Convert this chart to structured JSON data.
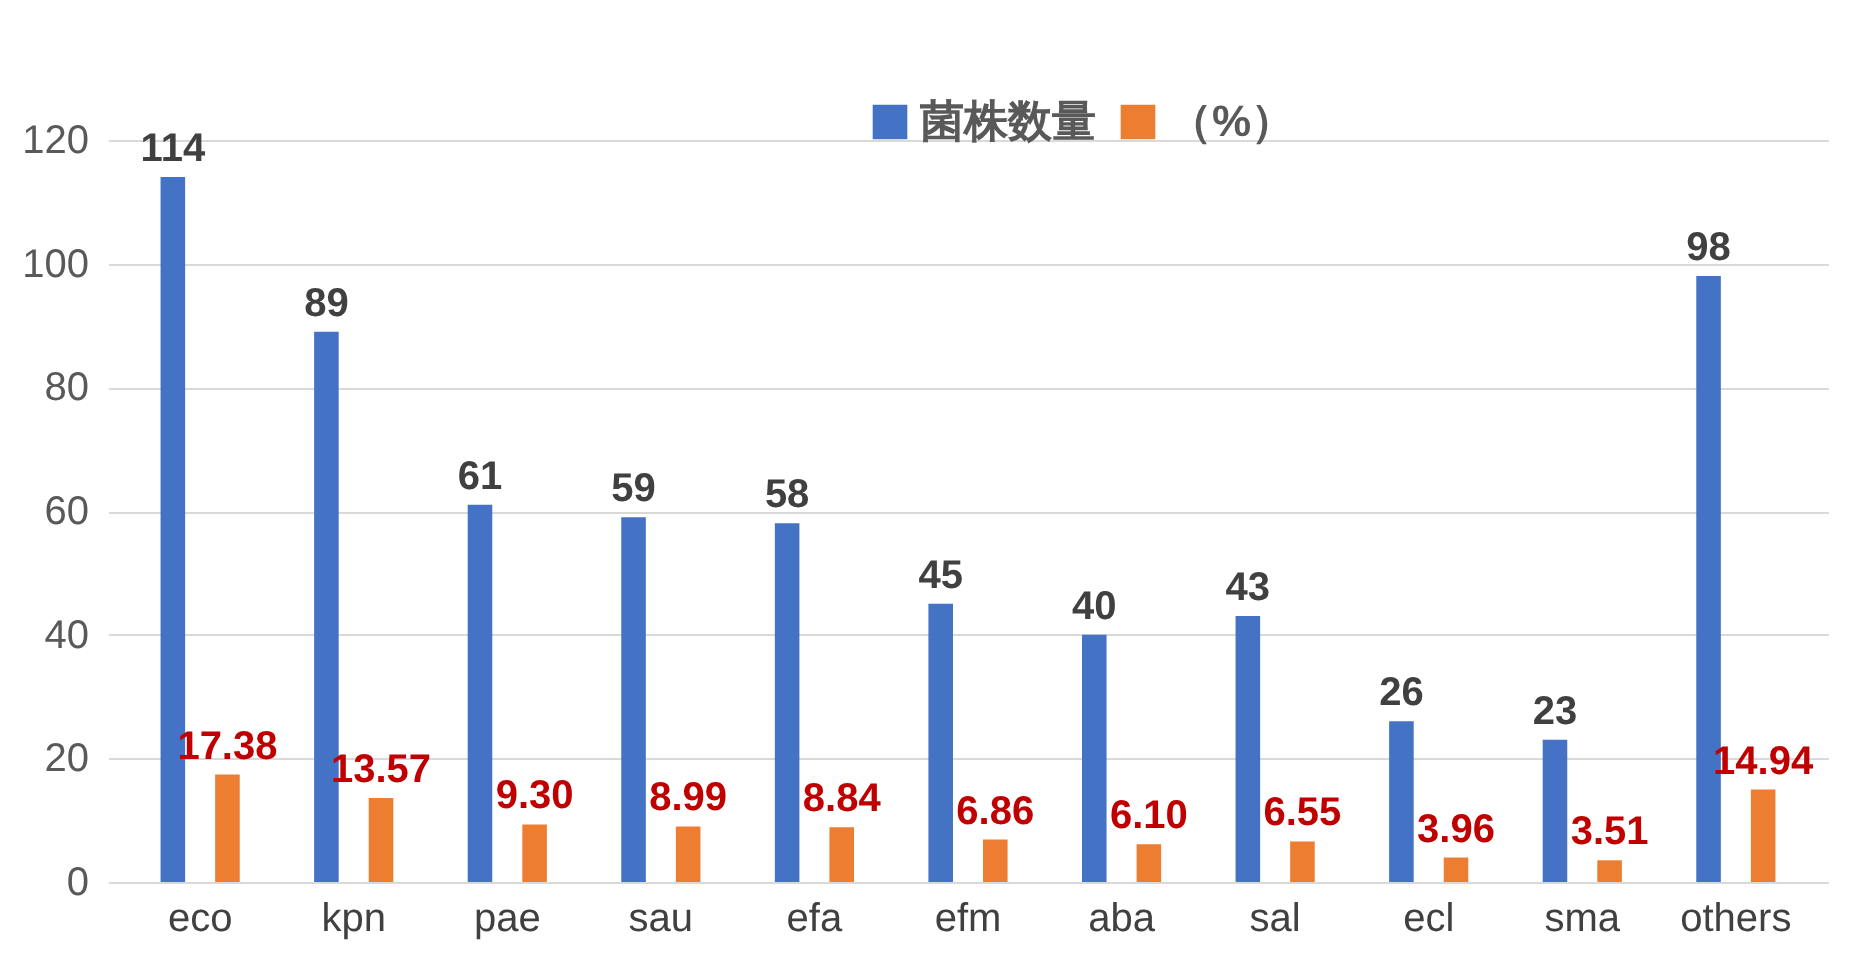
{
  "chart_data": {
    "type": "bar",
    "categories": [
      "eco",
      "kpn",
      "pae",
      "sau",
      "efa",
      "efm",
      "aba",
      "sal",
      "ecl",
      "sma",
      "others"
    ],
    "series": [
      {
        "name": "菌株数量",
        "color": "#4472c4",
        "values": [
          114,
          89,
          61,
          59,
          58,
          45,
          40,
          43,
          26,
          23,
          98
        ],
        "value_labels": [
          "114",
          "89",
          "61",
          "59",
          "58",
          "45",
          "40",
          "43",
          "26",
          "23",
          "98"
        ]
      },
      {
        "name": "（%）",
        "color": "#ed7d31",
        "values": [
          17.38,
          13.57,
          9.3,
          8.99,
          8.84,
          6.86,
          6.1,
          6.55,
          3.96,
          3.51,
          14.94
        ],
        "value_labels": [
          "17.38",
          "13.57",
          "9.30",
          "8.99",
          "8.84",
          "6.86",
          "6.10",
          "6.55",
          "3.96",
          "3.51",
          "14.94"
        ]
      }
    ],
    "ylim": [
      0,
      120
    ],
    "yticks": [
      0,
      20,
      40,
      60,
      80,
      100,
      120
    ],
    "grid": "y",
    "legend": "top"
  }
}
